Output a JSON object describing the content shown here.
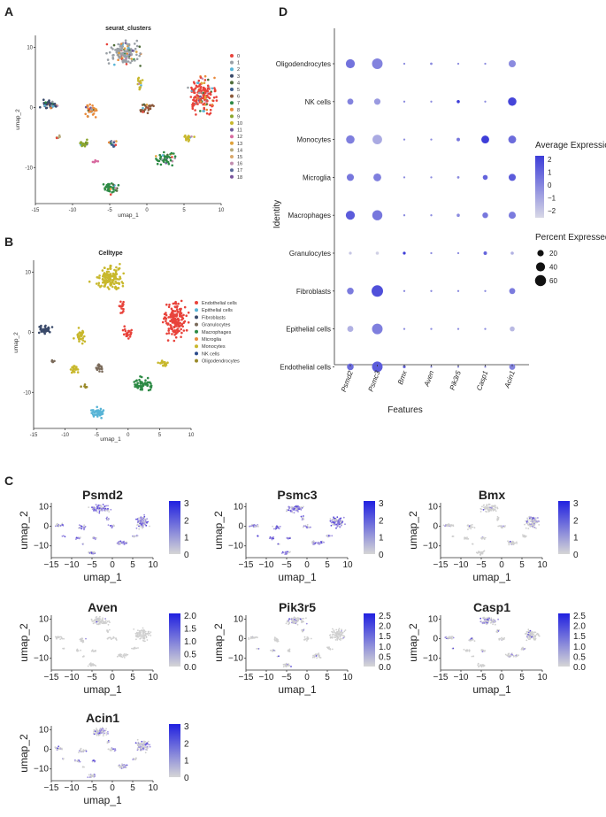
{
  "panel_letters": {
    "A": "A",
    "B": "B",
    "C": "C",
    "D": "D"
  },
  "colors": {
    "accent": "#3d3dd8",
    "light": "#d8d8e6",
    "grey": "#cfcfcf"
  },
  "chart_data": [
    {
      "id": "A",
      "type": "scatter",
      "title": "seurat_clusters",
      "xlabel": "umap_1",
      "ylabel": "umap_2",
      "xticks": [
        "-15",
        "-10",
        "-5",
        "0",
        "5",
        "10"
      ],
      "yticks": [
        "10",
        "0",
        "-10"
      ],
      "legend": [
        "0",
        "1",
        "2",
        "3",
        "4",
        "5",
        "6",
        "7",
        "8",
        "9",
        "10",
        "11",
        "12",
        "13",
        "14",
        "15",
        "16",
        "17",
        "18"
      ],
      "legend_colors": [
        "#e8433b",
        "#9aa0a6",
        "#58b4d6",
        "#3a4a6a",
        "#4f6d3a",
        "#3f5f8f",
        "#8c5a3c",
        "#2d8a45",
        "#e88a3c",
        "#8aa52d",
        "#c8b82d",
        "#6d5c9a",
        "#d86aa0",
        "#e0a23a",
        "#b5a87a",
        "#d9a86a",
        "#c28fb0",
        "#5b6b9a",
        "#79559c"
      ]
    },
    {
      "id": "B",
      "type": "scatter",
      "title": "Celltype",
      "xlabel": "umap_1",
      "ylabel": "umap_2",
      "xticks": [
        "-15",
        "-10",
        "-5",
        "0",
        "5",
        "10"
      ],
      "yticks": [
        "10",
        "0",
        "-10"
      ],
      "legend": [
        "Endothelial cells",
        "Epithelial cells",
        "Fibroblasts",
        "Granulocytes",
        "Macrophages",
        "Microglia",
        "Monocytes",
        "NK cells",
        "Oligodendrocytes"
      ],
      "legend_colors": [
        "#e8433b",
        "#58b4d6",
        "#3a4a6a",
        "#7a6a5a",
        "#2d8a45",
        "#e88a3c",
        "#c8b82d",
        "#2a4a8a",
        "#9a8a2a"
      ]
    },
    {
      "id": "D",
      "type": "scatter",
      "ylabel": "Identity",
      "xlabel": "Features",
      "features": [
        "Psmd2",
        "Psmc3",
        "Bmx",
        "Aven",
        "Pik3r5",
        "Casp1",
        "Acin1"
      ],
      "identities": [
        "Oligodendrocytes",
        "NK cells",
        "Monocytes",
        "Microglia",
        "Macrophages",
        "Granulocytes",
        "Fibroblasts",
        "Epithelial cells",
        "Endothelial cells"
      ],
      "pct": [
        [
          40,
          55,
          2,
          3,
          2,
          2,
          25
        ],
        [
          18,
          20,
          2,
          2,
          5,
          2,
          35
        ],
        [
          35,
          45,
          2,
          2,
          6,
          30,
          30
        ],
        [
          25,
          30,
          2,
          2,
          3,
          12,
          25
        ],
        [
          40,
          50,
          2,
          2,
          5,
          16,
          25
        ],
        [
          4,
          5,
          4,
          2,
          2,
          6,
          5
        ],
        [
          22,
          65,
          2,
          2,
          2,
          2,
          18
        ],
        [
          18,
          55,
          2,
          2,
          2,
          2,
          12
        ],
        [
          22,
          55,
          4,
          2,
          2,
          2,
          18
        ]
      ],
      "avg": [
        [
          0.6,
          0.2,
          0,
          0,
          0,
          0,
          0
        ],
        [
          0.2,
          -0.4,
          0,
          0,
          2,
          0,
          1.8
        ],
        [
          0.3,
          -0.8,
          0,
          0,
          0.5,
          2,
          0.8
        ],
        [
          0.5,
          0.3,
          0,
          0,
          0,
          1,
          1.2
        ],
        [
          1.2,
          0.5,
          0,
          0,
          0,
          0.5,
          0.4
        ],
        [
          -1.5,
          -1.8,
          2,
          0,
          0,
          1,
          -1
        ],
        [
          0.4,
          1.5,
          0,
          0,
          0,
          0,
          0.4
        ],
        [
          -1,
          0.3,
          0,
          0,
          0,
          0,
          -1.2
        ],
        [
          0.8,
          1.2,
          1,
          0,
          0,
          0,
          0.2
        ]
      ],
      "color_legend_title": "Average Expression",
      "color_ticks": [
        "2",
        "1",
        "0",
        "−1",
        "−2"
      ],
      "size_legend_title": "Percent Expressed",
      "size_ticks": [
        "20",
        "40",
        "60"
      ]
    },
    {
      "id": "C",
      "type": "scatter",
      "feature_plots": [
        {
          "gene": "Psmd2",
          "scale": [
            "3",
            "2",
            "1",
            "0"
          ],
          "intensity": 0.7
        },
        {
          "gene": "Psmc3",
          "scale": [
            "3",
            "2",
            "1",
            "0"
          ],
          "intensity": 0.7
        },
        {
          "gene": "Bmx",
          "scale": [
            "3",
            "2",
            "1",
            "0"
          ],
          "intensity": 0.08
        },
        {
          "gene": "Aven",
          "scale": [
            "2.0",
            "1.5",
            "1.0",
            "0.5",
            "0.0"
          ],
          "intensity": 0.02
        },
        {
          "gene": "Pik3r5",
          "scale": [
            "2.5",
            "2.0",
            "1.5",
            "1.0",
            "0.5",
            "0.0"
          ],
          "intensity": 0.04
        },
        {
          "gene": "Casp1",
          "scale": [
            "2.5",
            "2.0",
            "1.5",
            "1.0",
            "0.5",
            "0.0"
          ],
          "intensity": 0.15
        },
        {
          "gene": "Acin1",
          "scale": [
            "3",
            "2",
            "1",
            "0"
          ],
          "intensity": 0.35
        }
      ],
      "xlabel": "umap_1",
      "ylabel": "umap_2",
      "xticks": [
        "−15",
        "−10",
        "−5",
        "0",
        "5",
        "10"
      ],
      "yticks": [
        "10",
        "0",
        "−10"
      ]
    }
  ]
}
